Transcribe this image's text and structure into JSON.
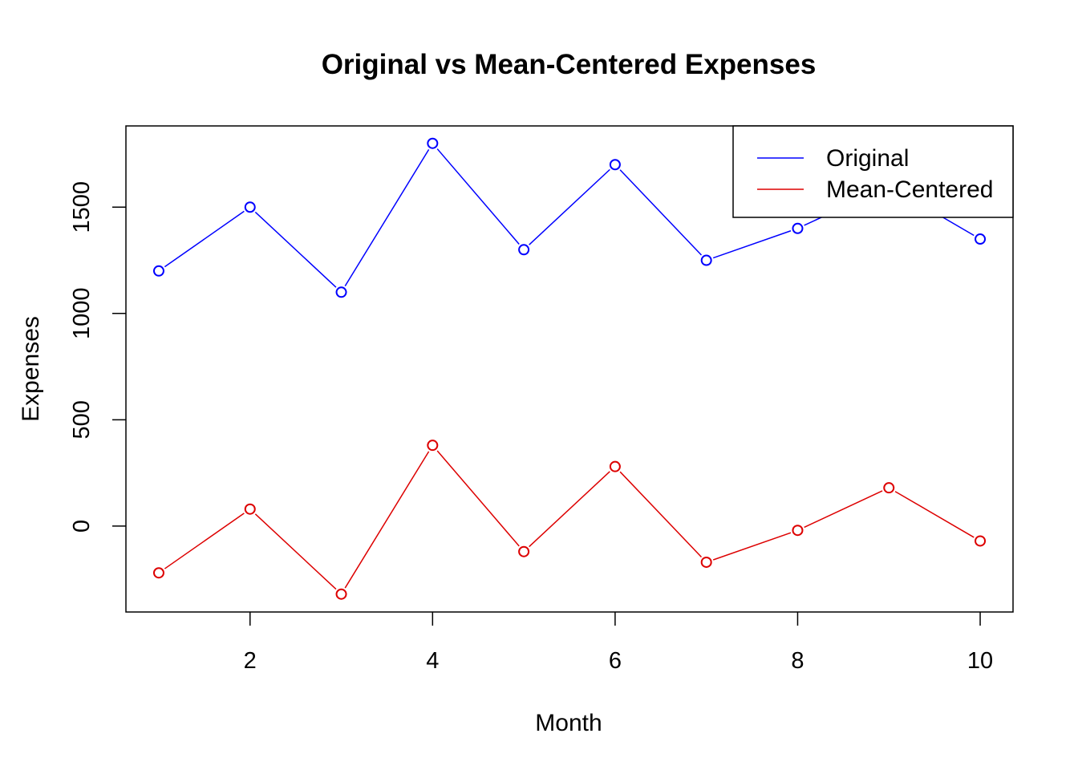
{
  "chart_data": {
    "type": "line",
    "title": "Original vs Mean-Centered Expenses",
    "xlabel": "Month",
    "ylabel": "Expenses",
    "x": [
      1,
      2,
      3,
      4,
      5,
      6,
      7,
      8,
      9,
      10
    ],
    "xlim": [
      0.64,
      10.36
    ],
    "ylim": [
      -404,
      1882
    ],
    "x_ticks": [
      2,
      4,
      6,
      8,
      10
    ],
    "y_ticks": [
      0,
      500,
      1000,
      1500
    ],
    "grid": false,
    "legend_position": "top-right",
    "series": [
      {
        "name": "Original",
        "color": "#0000ff",
        "values": [
          1200,
          1500,
          1100,
          1800,
          1300,
          1700,
          1250,
          1400,
          1600,
          1350
        ]
      },
      {
        "name": "Mean-Centered",
        "color": "#dd0000",
        "values": [
          -220,
          80,
          -320,
          380,
          -120,
          280,
          -170,
          -20,
          180,
          -70
        ]
      }
    ]
  }
}
